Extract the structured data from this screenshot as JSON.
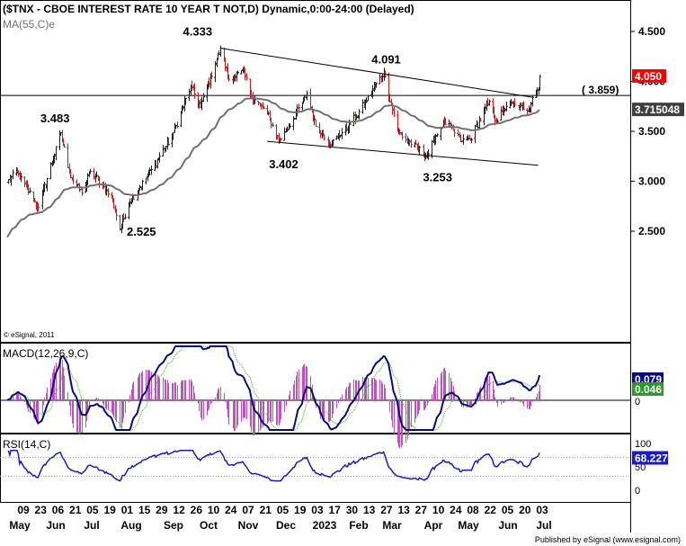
{
  "header": {
    "title": "($TNX - CBOE INTEREST RATE 10 YEAR T NOT,D) Dynamic,0:00-24:00 (Delayed)",
    "ma_label": "MA(55,C)e",
    "watermark": "© eSignal, 2011"
  },
  "footer": {
    "published": "Published by eSignal (www.esignal.com)"
  },
  "colors": {
    "bar_up": "#202020",
    "bar_down": "#cc1a1a",
    "ma": "#707070",
    "macd_line": "#0a0a80",
    "signal_line": "#3aa63a",
    "histogram": "#c050c0",
    "rsi": "#1a1acc",
    "price_badge": "#ff0000",
    "ma_badge": "#404040",
    "macd_badge": "#0a0a80",
    "signal_badge": "#2a9a2a",
    "rsi_badge": "#1a1acc"
  },
  "chart_data": [
    {
      "type": "candlestick",
      "title": "($TNX - CBOE INTEREST RATE 10 YEAR T NOT,D) Dynamic,0:00-24:00 (Delayed)",
      "ylim": [
        2.3,
        4.6
      ],
      "yticks": [
        "4.500",
        "4.000",
        "3.500",
        "3.000",
        "2.500"
      ],
      "ytick_values": [
        4.5,
        4.0,
        3.5,
        3.0,
        2.5
      ],
      "xticks_days": [
        "09",
        "23",
        "06",
        "21",
        "05",
        "19",
        "01",
        "15",
        "29",
        "12",
        "26",
        "10",
        "24",
        "07",
        "21",
        "05",
        "19",
        "03",
        "17",
        "30",
        "13",
        "27",
        "13",
        "27",
        "10",
        "24",
        "08",
        "22",
        "05",
        "20",
        "03"
      ],
      "xticks_months": [
        "May",
        "Jun",
        "Jul",
        "Aug",
        "Sep",
        "Oct",
        "Nov",
        "Dec",
        "2023",
        "Feb",
        "Mar",
        "Apr",
        "May",
        "Jun",
        "Jul"
      ],
      "price_anchors": [
        [
          "2022-05-02",
          2.99
        ],
        [
          "2022-05-09",
          3.1
        ],
        [
          "2022-05-27",
          2.74
        ],
        [
          "2022-06-14",
          3.483
        ],
        [
          "2022-06-22",
          3.05
        ],
        [
          "2022-07-01",
          2.88
        ],
        [
          "2022-07-08",
          3.1
        ],
        [
          "2022-07-18",
          2.96
        ],
        [
          "2022-07-26",
          2.8
        ],
        [
          "2022-08-01",
          2.525
        ],
        [
          "2022-08-08",
          2.78
        ],
        [
          "2022-08-23",
          3.05
        ],
        [
          "2022-09-12",
          3.45
        ],
        [
          "2022-09-27",
          3.95
        ],
        [
          "2022-10-05",
          3.75
        ],
        [
          "2022-10-21",
          4.333
        ],
        [
          "2022-10-28",
          4.02
        ],
        [
          "2022-11-09",
          4.1
        ],
        [
          "2022-11-14",
          3.87
        ],
        [
          "2022-11-28",
          3.68
        ],
        [
          "2022-12-07",
          3.402
        ],
        [
          "2022-12-13",
          3.5
        ],
        [
          "2022-12-30",
          3.88
        ],
        [
          "2023-01-06",
          3.55
        ],
        [
          "2023-01-19",
          3.38
        ],
        [
          "2023-02-08",
          3.65
        ],
        [
          "2023-03-02",
          4.091
        ],
        [
          "2023-03-13",
          3.5
        ],
        [
          "2023-03-22",
          3.4
        ],
        [
          "2023-04-06",
          3.253
        ],
        [
          "2023-04-13",
          3.45
        ],
        [
          "2023-04-20",
          3.6
        ],
        [
          "2023-05-04",
          3.4
        ],
        [
          "2023-05-11",
          3.42
        ],
        [
          "2023-05-26",
          3.8
        ],
        [
          "2023-06-01",
          3.6
        ],
        [
          "2023-06-09",
          3.75
        ],
        [
          "2023-06-16",
          3.77
        ],
        [
          "2023-06-27",
          3.72
        ],
        [
          "2023-06-30",
          3.84
        ],
        [
          "2023-07-05",
          3.93
        ],
        [
          "2023-07-06",
          4.05
        ]
      ],
      "ma": {
        "name": "MA(55,C)e",
        "period": 55,
        "last": 3.715048
      },
      "last_price": "4.050",
      "ma_value": "3.715048",
      "level_label": "( 3.859)",
      "level_value": 3.859,
      "annotations": [
        {
          "text": "4.333",
          "date": "2022-10-21",
          "value": 4.333
        },
        {
          "text": "3.483",
          "date": "2022-06-14",
          "value": 3.483
        },
        {
          "text": "2.525",
          "date": "2022-08-01",
          "value": 2.525
        },
        {
          "text": "3.402",
          "date": "2022-12-07",
          "value": 3.402
        },
        {
          "text": "4.091",
          "date": "2023-03-02",
          "value": 4.091
        },
        {
          "text": "3.253",
          "date": "2023-04-06",
          "value": 3.253
        }
      ],
      "trendlines": [
        {
          "name": "upper",
          "from": [
            "2022-10-21",
            4.333
          ],
          "to": [
            "2023-07-01",
            3.84
          ]
        },
        {
          "name": "lower",
          "from": [
            "2022-11-28",
            3.4
          ],
          "to": [
            "2023-07-05",
            3.16
          ]
        }
      ]
    },
    {
      "type": "line",
      "title": "MACD(12,26,9,C)",
      "series": [
        {
          "name": "MACD",
          "last": "0.079"
        },
        {
          "name": "Signal",
          "last": "0.046"
        },
        {
          "name": "Histogram"
        }
      ],
      "zero_label": "0"
    },
    {
      "type": "line",
      "title": "RSI(14,C)",
      "ylim": [
        0,
        100
      ],
      "yticks": [
        "100",
        "50",
        "0"
      ],
      "ytick_values": [
        100,
        50,
        0
      ],
      "levels": [
        70,
        30
      ],
      "last": "68.227"
    }
  ]
}
